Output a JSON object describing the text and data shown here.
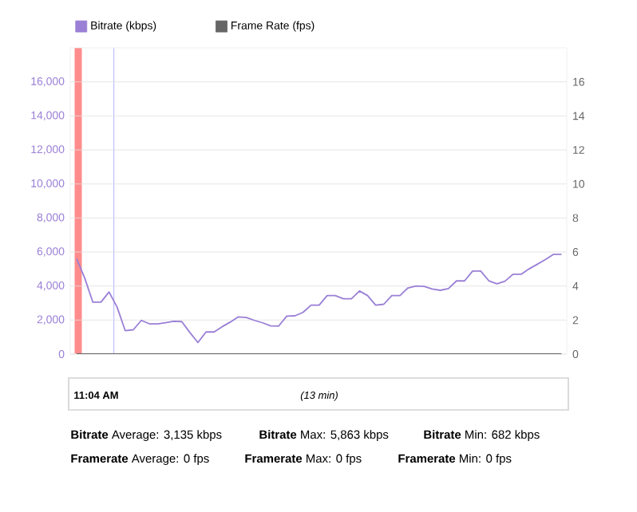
{
  "chart_data": {
    "type": "line",
    "categories": [
      null,
      null,
      null,
      null,
      null,
      null,
      null,
      null,
      null,
      null,
      null,
      null,
      null,
      null,
      null,
      null,
      null,
      null,
      null,
      null,
      null,
      null,
      null,
      null,
      null,
      null,
      null,
      null,
      null,
      null,
      null,
      null,
      null,
      null,
      null,
      null,
      null,
      null,
      null,
      null,
      null,
      null,
      null,
      null,
      null,
      null,
      null,
      null,
      null,
      null,
      null,
      null,
      null,
      null,
      null,
      null,
      null,
      null,
      null,
      null,
      null
    ],
    "series": [
      {
        "name": "Bitrate (kbps)",
        "color": "#9a7fd6",
        "values": [
          5600,
          4460,
          3050,
          3050,
          3650,
          2760,
          1380,
          1430,
          1980,
          1780,
          1780,
          1850,
          1930,
          1910,
          1270,
          682,
          1300,
          1300,
          1610,
          1880,
          2190,
          2150,
          1980,
          1840,
          1660,
          1650,
          2230,
          2250,
          2450,
          2880,
          2880,
          3440,
          3440,
          3250,
          3250,
          3710,
          3440,
          2880,
          2930,
          3440,
          3440,
          3890,
          4000,
          3980,
          3830,
          3750,
          3850,
          4300,
          4300,
          4880,
          4880,
          4310,
          4130,
          4280,
          4690,
          4690,
          5010,
          5280,
          5550,
          5863,
          5863
        ]
      },
      {
        "name": "Frame Rate (fps)",
        "color": "#666666",
        "axis": "y2",
        "values": [
          0,
          0,
          0,
          0,
          0,
          0,
          0,
          0,
          0,
          0,
          0,
          0,
          0,
          0,
          0,
          0,
          0,
          0,
          0,
          0,
          0,
          0,
          0,
          0,
          0,
          0,
          0,
          0,
          0,
          0,
          0,
          0,
          0,
          0,
          0,
          0,
          0,
          0,
          0,
          0,
          0,
          0,
          0,
          0,
          0,
          0,
          0,
          0,
          0,
          0,
          0,
          0,
          0,
          0,
          0,
          0,
          0,
          0,
          0,
          0,
          0
        ]
      }
    ],
    "ylim": [
      0,
      18000
    ],
    "yticks": [
      0,
      {
        "value": 2000,
        "label": "2,000"
      },
      {
        "value": 4000,
        "label": "4,000"
      },
      {
        "value": 6000,
        "label": "6,000"
      },
      {
        "value": 8000,
        "label": "8,000"
      },
      {
        "value": 10000,
        "label": "10,000"
      },
      {
        "value": 12000,
        "label": "12,000"
      },
      {
        "value": 14000,
        "label": "14,000"
      },
      {
        "value": 16000,
        "label": "16,000"
      }
    ],
    "y2lim": [
      0,
      18
    ],
    "y2ticks": [
      0,
      2,
      4,
      6,
      8,
      10,
      12,
      14,
      16
    ],
    "grid": "y",
    "legend": "top",
    "line_style": "solid",
    "annotations": [
      "11:04 AM",
      "(13 min)",
      "**Bitrate** Average: 3,135 kbps",
      "**Bitrate** Max: 5,863 kbps",
      "**Bitrate** Min: 682 kbps",
      "**Framerate** Average: 0 fps",
      "**Framerate** Max: 0 fps",
      "**Framerate** Min: 0 fps"
    ]
  }
}
